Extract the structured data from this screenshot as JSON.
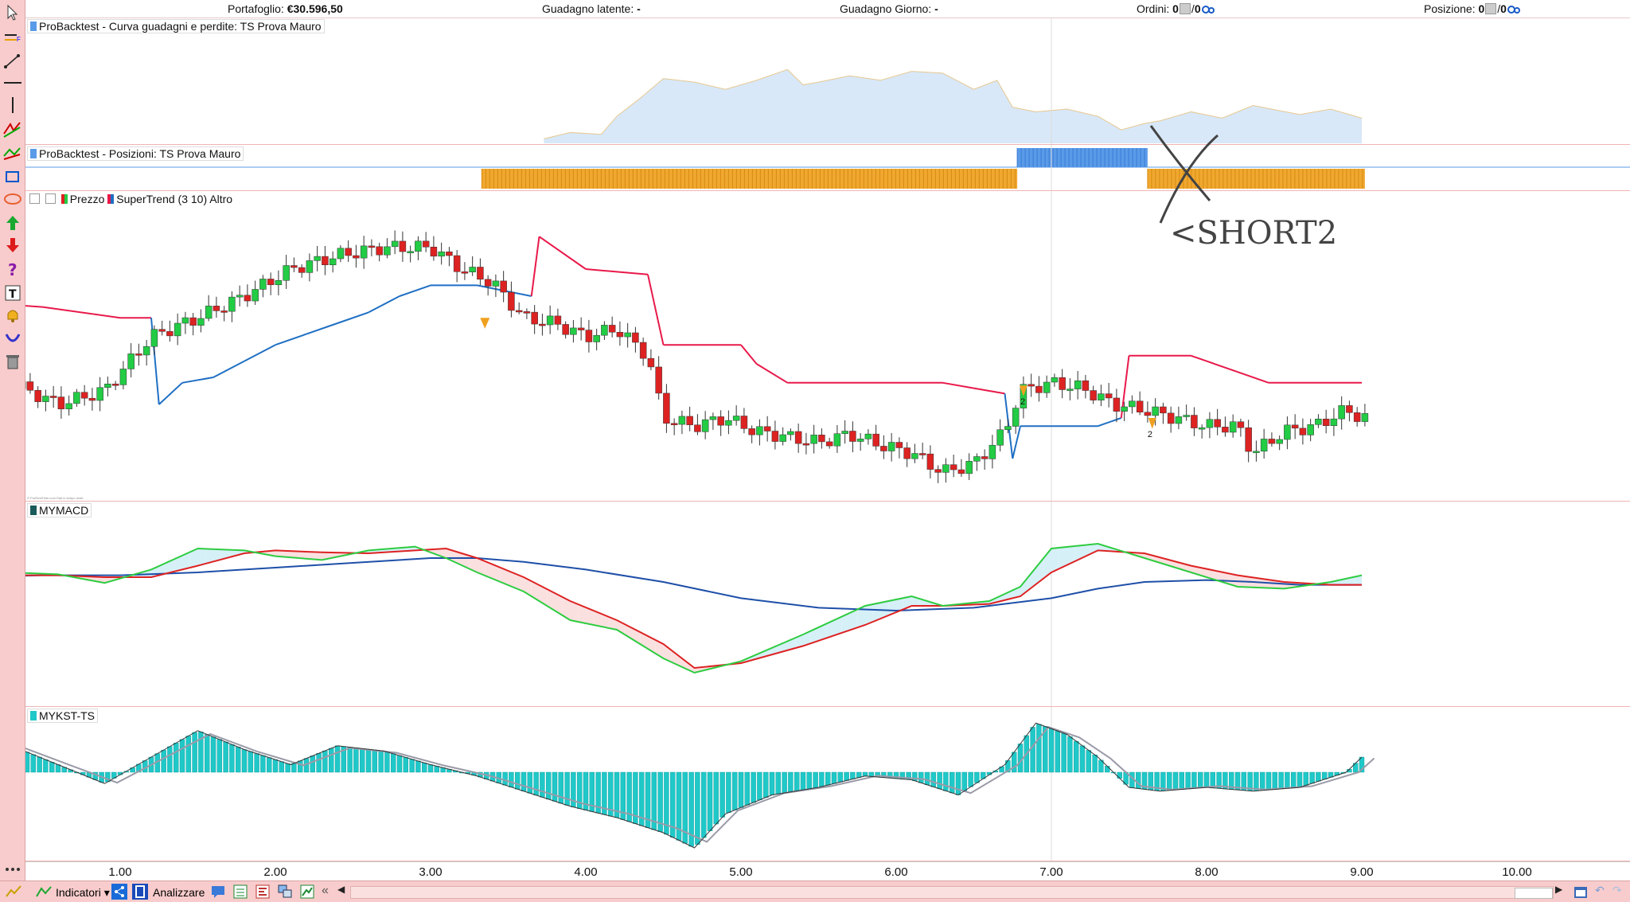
{
  "topbar": {
    "portfolio_label": "Portafoglio:",
    "portfolio_value": "€30.596,50",
    "unrealized_label": "Guadagno latente:",
    "unrealized_value": "-",
    "day_gain_label": "Guadagno Giorno:",
    "day_gain_value": "-",
    "orders_label": "Ordini:",
    "orders_value_a": "0",
    "orders_value_b": "0",
    "position_label": "Posizione:",
    "position_value_a": "0",
    "position_value_b": "0"
  },
  "panels": {
    "equity_title": "ProBacktest - Curva guadagni e perdite: TS Prova Mauro",
    "positions_title": "ProBacktest - Posizioni: TS Prova Mauro",
    "price_label": "Prezzo",
    "supertrend_label": "SuperTrend (3 10) Altro",
    "macd_title": "MYMACD",
    "kst_title": "MYKST-TS",
    "annotation": "<SHORT2",
    "trade_label_1": "2",
    "trade_label_2": "2",
    "watermark": "© ProRealTime.com Dati in tempo reale"
  },
  "xaxis": {
    "ticks": [
      "1.00",
      "2.00",
      "3.00",
      "4.00",
      "5.00",
      "6.00",
      "7.00",
      "8.00",
      "9.00",
      "10.00"
    ]
  },
  "bottombar": {
    "indicators_label": "Indicatori",
    "analyze_label": "Analizzare"
  },
  "colors": {
    "up_candle": "#22cc44",
    "down_candle": "#dd2222",
    "supertrend_up": "#1f6fc4",
    "supertrend_down": "#e8194a",
    "long_position": "#f0a830",
    "short_position": "#5a9be8",
    "equity_fill": "#d8e8f8",
    "macd_green": "#2ecc40",
    "macd_red": "#dd2222",
    "macd_blue": "#1e4fa8",
    "kst_bar": "#20c8c8",
    "toolbar_bg": "#f8cccc"
  },
  "chart_data": [
    {
      "type": "area",
      "title": "ProBacktest - Curva guadagni e perdite: TS Prova Mauro",
      "x": [
        3.73,
        3.9,
        4.1,
        4.2,
        4.35,
        4.5,
        4.7,
        4.9,
        5.1,
        5.3,
        5.4,
        5.5,
        5.7,
        5.9,
        6.1,
        6.3,
        6.5,
        6.65,
        6.75,
        6.9,
        7.1,
        7.3,
        7.45,
        7.6,
        7.7,
        7.9,
        8.1,
        8.3,
        8.6,
        8.8,
        9.0
      ],
      "values": [
        0.05,
        0.12,
        0.1,
        0.3,
        0.5,
        0.72,
        0.68,
        0.6,
        0.7,
        0.82,
        0.65,
        0.68,
        0.75,
        0.7,
        0.8,
        0.78,
        0.6,
        0.7,
        0.4,
        0.35,
        0.38,
        0.3,
        0.15,
        0.22,
        0.25,
        0.35,
        0.28,
        0.42,
        0.32,
        0.38,
        0.28
      ]
    },
    {
      "type": "table",
      "title": "ProBacktest - Posizioni: TS Prova Mauro",
      "segments": [
        {
          "from": 3.33,
          "to": 6.78,
          "side": "long"
        },
        {
          "from": 6.78,
          "to": 7.62,
          "side": "short"
        },
        {
          "from": 7.62,
          "to": 9.02,
          "side": "long"
        }
      ]
    },
    {
      "type": "line",
      "title": "Prezzo / SuperTrend (3 10) Altro",
      "series": [
        {
          "name": "Prezzo",
          "x": [
            0.0,
            0.3,
            0.6,
            0.9,
            1.2,
            1.5,
            1.8,
            2.1,
            2.4,
            2.7,
            3.0,
            3.2,
            3.4,
            3.6,
            3.8,
            4.0,
            4.2,
            4.4,
            4.5,
            4.7,
            4.9,
            5.1,
            5.3,
            5.5,
            5.7,
            5.9,
            6.1,
            6.3,
            6.5,
            6.7,
            6.8,
            7.0,
            7.2,
            7.4,
            7.6,
            7.8,
            8.0,
            8.2,
            8.3,
            8.5,
            8.7,
            8.9,
            9.0
          ],
          "values": [
            0.42,
            0.38,
            0.3,
            0.35,
            0.55,
            0.62,
            0.7,
            0.8,
            0.85,
            0.88,
            0.88,
            0.8,
            0.75,
            0.62,
            0.6,
            0.55,
            0.58,
            0.48,
            0.25,
            0.22,
            0.25,
            0.2,
            0.18,
            0.16,
            0.19,
            0.15,
            0.12,
            0.05,
            0.08,
            0.2,
            0.35,
            0.38,
            0.36,
            0.3,
            0.28,
            0.25,
            0.22,
            0.22,
            0.12,
            0.2,
            0.22,
            0.28,
            0.25
          ]
        },
        {
          "name": "SuperTrend (3 10) Altro",
          "x": [
            0.0,
            0.5,
            1.0,
            1.2,
            1.25,
            1.4,
            1.6,
            1.8,
            2.0,
            2.2,
            2.4,
            2.6,
            2.8,
            3.0,
            3.3,
            3.65,
            3.7,
            4.0,
            4.4,
            4.5,
            4.7,
            5.0,
            5.1,
            5.3,
            5.8,
            6.3,
            6.5,
            6.7,
            6.75,
            6.8,
            7.0,
            7.3,
            7.45,
            7.5,
            7.9,
            8.0,
            8.2,
            8.4,
            8.6,
            8.8,
            9.0
          ],
          "values": [
            0.68,
            0.66,
            0.62,
            0.62,
            0.3,
            0.38,
            0.4,
            0.46,
            0.52,
            0.56,
            0.6,
            0.64,
            0.7,
            0.74,
            0.74,
            0.7,
            0.92,
            0.8,
            0.78,
            0.52,
            0.52,
            0.52,
            0.45,
            0.38,
            0.38,
            0.38,
            0.36,
            0.34,
            0.1,
            0.22,
            0.22,
            0.22,
            0.25,
            0.48,
            0.48,
            0.46,
            0.42,
            0.38,
            0.38,
            0.38,
            0.38
          ]
        }
      ]
    },
    {
      "type": "line",
      "title": "MYMACD",
      "series": [
        {
          "name": "green",
          "x": [
            0.0,
            0.3,
            0.6,
            0.9,
            1.2,
            1.5,
            1.8,
            2.0,
            2.3,
            2.6,
            2.9,
            3.1,
            3.3,
            3.6,
            3.9,
            4.2,
            4.5,
            4.7,
            5.0,
            5.4,
            5.8,
            6.1,
            6.3,
            6.6,
            6.8,
            7.0,
            7.3,
            7.6,
            7.9,
            8.2,
            8.5,
            8.8,
            9.0
          ],
          "values": [
            0.02,
            0.05,
            0.03,
            -0.06,
            0.08,
            0.3,
            0.28,
            0.22,
            0.18,
            0.28,
            0.32,
            0.2,
            0.05,
            -0.15,
            -0.45,
            -0.55,
            -0.85,
            -1.0,
            -0.88,
            -0.6,
            -0.3,
            -0.2,
            -0.3,
            -0.25,
            -0.1,
            0.3,
            0.35,
            0.2,
            0.05,
            -0.1,
            -0.12,
            -0.05,
            0.02
          ]
        },
        {
          "name": "red",
          "x": [
            0.0,
            0.3,
            0.6,
            0.9,
            1.2,
            1.5,
            1.8,
            2.0,
            2.3,
            2.6,
            2.9,
            3.1,
            3.3,
            3.6,
            3.9,
            4.2,
            4.5,
            4.7,
            5.0,
            5.4,
            5.8,
            6.1,
            6.3,
            6.6,
            6.8,
            7.0,
            7.3,
            7.6,
            7.9,
            8.2,
            8.5,
            8.8,
            9.0
          ],
          "values": [
            -0.08,
            0.02,
            0.02,
            0.0,
            0.0,
            0.12,
            0.25,
            0.28,
            0.26,
            0.25,
            0.28,
            0.3,
            0.2,
            0.0,
            -0.25,
            -0.45,
            -0.7,
            -0.95,
            -0.9,
            -0.72,
            -0.5,
            -0.3,
            -0.3,
            -0.28,
            -0.2,
            0.05,
            0.28,
            0.25,
            0.12,
            0.02,
            -0.05,
            -0.08,
            -0.08
          ]
        },
        {
          "name": "blue",
          "x": [
            0.0,
            0.5,
            1.0,
            1.5,
            2.0,
            2.5,
            3.0,
            3.3,
            3.6,
            4.0,
            4.5,
            5.0,
            5.5,
            6.0,
            6.5,
            7.0,
            7.3,
            7.6,
            8.0,
            8.3,
            8.6,
            9.0
          ],
          "values": [
            0.0,
            0.02,
            0.02,
            0.05,
            0.1,
            0.15,
            0.2,
            0.2,
            0.16,
            0.08,
            -0.05,
            -0.22,
            -0.32,
            -0.35,
            -0.32,
            -0.22,
            -0.12,
            -0.05,
            -0.03,
            -0.05,
            -0.08,
            -0.08
          ]
        }
      ]
    },
    {
      "type": "bar",
      "title": "MYKST-TS",
      "x": [
        0.0,
        0.3,
        0.6,
        0.9,
        1.2,
        1.5,
        1.8,
        2.1,
        2.4,
        2.7,
        3.0,
        3.3,
        3.6,
        3.9,
        4.2,
        4.5,
        4.7,
        4.9,
        5.2,
        5.5,
        5.8,
        6.1,
        6.4,
        6.7,
        6.9,
        7.1,
        7.3,
        7.5,
        7.7,
        8.0,
        8.3,
        8.6,
        8.9,
        9.0
      ],
      "values": [
        0.3,
        0.35,
        0.1,
        -0.15,
        0.2,
        0.55,
        0.3,
        0.1,
        0.35,
        0.28,
        0.1,
        -0.05,
        -0.25,
        -0.45,
        -0.6,
        -0.8,
        -1.0,
        -0.55,
        -0.3,
        -0.2,
        -0.05,
        -0.1,
        -0.3,
        0.1,
        0.65,
        0.5,
        0.2,
        -0.2,
        -0.25,
        -0.2,
        -0.25,
        -0.2,
        0.0,
        0.2
      ]
    }
  ]
}
